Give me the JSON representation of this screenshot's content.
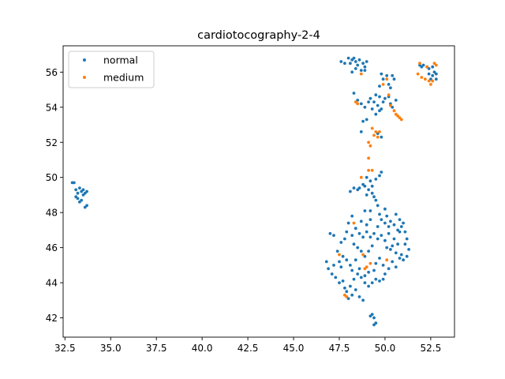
{
  "chart_data": {
    "type": "scatter",
    "title": "cardiotocography-2-4",
    "xlabel": "",
    "ylabel": "",
    "xlim": [
      32.4,
      53.8
    ],
    "ylim": [
      40.9,
      57.5
    ],
    "xticks": [
      32.5,
      35.0,
      37.5,
      40.0,
      42.5,
      45.0,
      47.5,
      50.0,
      52.5
    ],
    "xtick_labels": [
      "32.5",
      "35.0",
      "37.5",
      "40.0",
      "42.5",
      "45.0",
      "47.5",
      "50.0",
      "52.5"
    ],
    "yticks": [
      42,
      44,
      46,
      48,
      50,
      52,
      54,
      56
    ],
    "ytick_labels": [
      "42",
      "44",
      "46",
      "48",
      "50",
      "52",
      "54",
      "56"
    ],
    "grid": false,
    "legend": {
      "position": "top-left"
    },
    "series": [
      {
        "name": "normal",
        "color": "#1f77b4",
        "points": [
          [
            32.9,
            49.7
          ],
          [
            33.0,
            49.7
          ],
          [
            33.1,
            49.3
          ],
          [
            33.2,
            49.1
          ],
          [
            33.2,
            48.8
          ],
          [
            33.3,
            49.4
          ],
          [
            33.3,
            48.6
          ],
          [
            33.4,
            49.2
          ],
          [
            33.5,
            49.0
          ],
          [
            33.5,
            49.3
          ],
          [
            33.6,
            49.1
          ],
          [
            33.7,
            49.2
          ],
          [
            33.6,
            48.3
          ],
          [
            33.7,
            48.4
          ],
          [
            33.1,
            48.9
          ],
          [
            33.4,
            48.7
          ],
          [
            47.6,
            56.6
          ],
          [
            47.8,
            56.5
          ],
          [
            48.0,
            56.8
          ],
          [
            48.2,
            56.7
          ],
          [
            48.3,
            56.8
          ],
          [
            48.4,
            56.6
          ],
          [
            48.5,
            56.4
          ],
          [
            48.6,
            56.7
          ],
          [
            48.8,
            56.5
          ],
          [
            48.9,
            56.3
          ],
          [
            48.7,
            56.1
          ],
          [
            48.4,
            56.2
          ],
          [
            48.2,
            56.0
          ],
          [
            49.0,
            56.6
          ],
          [
            48.1,
            56.5
          ],
          [
            48.9,
            56.1
          ],
          [
            49.8,
            55.9
          ],
          [
            49.9,
            55.6
          ],
          [
            50.1,
            55.8
          ],
          [
            50.2,
            55.3
          ],
          [
            50.4,
            55.8
          ],
          [
            50.5,
            55.6
          ],
          [
            50.3,
            55.1
          ],
          [
            49.7,
            55.2
          ],
          [
            48.3,
            54.8
          ],
          [
            48.5,
            54.4
          ],
          [
            48.7,
            54.2
          ],
          [
            48.9,
            54.0
          ],
          [
            49.1,
            54.3
          ],
          [
            49.2,
            54.5
          ],
          [
            49.4,
            54.3
          ],
          [
            49.5,
            54.7
          ],
          [
            49.7,
            54.6
          ],
          [
            49.9,
            54.3
          ],
          [
            50.0,
            54.5
          ],
          [
            50.2,
            54.6
          ],
          [
            50.3,
            54.2
          ],
          [
            49.3,
            53.9
          ],
          [
            49.5,
            53.6
          ],
          [
            49.7,
            53.8
          ],
          [
            48.8,
            53.2
          ],
          [
            49.0,
            53.3
          ],
          [
            48.7,
            52.6
          ],
          [
            50.6,
            54.4
          ],
          [
            50.4,
            54.0
          ],
          [
            49.6,
            54.1
          ],
          [
            49.8,
            53.9
          ],
          [
            51.9,
            56.4
          ],
          [
            52.0,
            56.3
          ],
          [
            52.1,
            56.4
          ],
          [
            52.3,
            56.3
          ],
          [
            52.4,
            56.2
          ],
          [
            52.6,
            56.3
          ],
          [
            52.7,
            56.0
          ],
          [
            52.8,
            55.6
          ],
          [
            52.6,
            55.8
          ],
          [
            52.4,
            55.9
          ],
          [
            52.5,
            55.6
          ],
          [
            52.8,
            55.9
          ],
          [
            49.6,
            52.5
          ],
          [
            49.8,
            52.3
          ],
          [
            49.0,
            50.0
          ],
          [
            49.2,
            49.8
          ],
          [
            49.3,
            49.5
          ],
          [
            49.5,
            49.9
          ],
          [
            49.7,
            50.1
          ],
          [
            49.8,
            50.3
          ],
          [
            48.8,
            49.6
          ],
          [
            48.6,
            49.4
          ],
          [
            48.5,
            49.3
          ],
          [
            48.3,
            49.4
          ],
          [
            48.1,
            49.2
          ],
          [
            48.9,
            49.5
          ],
          [
            49.1,
            49.3
          ],
          [
            49.3,
            49.1
          ],
          [
            49.4,
            48.9
          ],
          [
            49.5,
            48.7
          ],
          [
            49.0,
            49.0
          ],
          [
            48.9,
            48.1
          ],
          [
            49.2,
            48.1
          ],
          [
            49.6,
            48.4
          ],
          [
            50.0,
            48.2
          ],
          [
            50.1,
            47.8
          ],
          [
            50.3,
            47.5
          ],
          [
            50.5,
            47.3
          ],
          [
            50.6,
            47.9
          ],
          [
            50.8,
            47.6
          ],
          [
            50.9,
            47.2
          ],
          [
            51.0,
            47.4
          ],
          [
            51.1,
            46.9
          ],
          [
            51.2,
            46.5
          ],
          [
            51.3,
            45.9
          ],
          [
            51.2,
            45.5
          ],
          [
            51.0,
            45.3
          ],
          [
            50.8,
            45.4
          ],
          [
            50.6,
            45.7
          ],
          [
            50.4,
            45.2
          ],
          [
            50.2,
            44.8
          ],
          [
            50.0,
            44.5
          ],
          [
            49.9,
            44.2
          ],
          [
            49.7,
            44.1
          ],
          [
            49.5,
            44.2
          ],
          [
            49.3,
            44.0
          ],
          [
            49.1,
            43.8
          ],
          [
            48.9,
            44.0
          ],
          [
            48.7,
            44.3
          ],
          [
            48.5,
            44.5
          ],
          [
            48.3,
            44.2
          ],
          [
            48.1,
            43.8
          ],
          [
            47.9,
            43.5
          ],
          [
            47.8,
            43.7
          ],
          [
            48.0,
            43.1
          ],
          [
            48.2,
            43.3
          ],
          [
            48.4,
            43.6
          ],
          [
            48.6,
            43.2
          ],
          [
            48.8,
            43.0
          ],
          [
            49.3,
            42.2
          ],
          [
            49.4,
            42.0
          ],
          [
            49.5,
            41.7
          ],
          [
            49.4,
            41.6
          ],
          [
            49.2,
            42.1
          ],
          [
            46.8,
            45.2
          ],
          [
            46.9,
            44.8
          ],
          [
            47.1,
            44.5
          ],
          [
            47.3,
            44.3
          ],
          [
            47.2,
            45.0
          ],
          [
            47.5,
            45.2
          ],
          [
            47.7,
            45.5
          ],
          [
            47.9,
            45.3
          ],
          [
            48.1,
            45.0
          ],
          [
            47.4,
            45.8
          ],
          [
            47.6,
            44.9
          ],
          [
            47.0,
            46.8
          ],
          [
            47.2,
            46.7
          ],
          [
            47.8,
            46.5
          ],
          [
            47.9,
            46.9
          ],
          [
            48.2,
            46.7
          ],
          [
            48.4,
            47.1
          ],
          [
            48.6,
            46.8
          ],
          [
            48.8,
            46.6
          ],
          [
            49.0,
            46.9
          ],
          [
            49.2,
            46.6
          ],
          [
            49.4,
            46.8
          ],
          [
            49.6,
            46.5
          ],
          [
            49.8,
            46.7
          ],
          [
            50.0,
            46.4
          ],
          [
            50.2,
            46.8
          ],
          [
            50.4,
            46.1
          ],
          [
            50.5,
            46.5
          ],
          [
            50.7,
            46.2
          ],
          [
            50.8,
            46.9
          ],
          [
            48.3,
            46.2
          ],
          [
            48.5,
            46.0
          ],
          [
            48.7,
            45.8
          ],
          [
            48.9,
            45.5
          ],
          [
            49.1,
            45.8
          ],
          [
            49.3,
            46.1
          ],
          [
            48.7,
            47.5
          ],
          [
            49.0,
            47.3
          ],
          [
            49.2,
            47.6
          ],
          [
            49.6,
            47.2
          ],
          [
            49.8,
            47.6
          ],
          [
            50.0,
            47.4
          ],
          [
            48.0,
            47.4
          ],
          [
            48.2,
            47.8
          ],
          [
            47.6,
            46.3
          ],
          [
            49.5,
            45.1
          ],
          [
            49.7,
            45.4
          ],
          [
            49.9,
            45.0
          ],
          [
            48.4,
            45.3
          ],
          [
            48.6,
            44.8
          ],
          [
            47.7,
            44.1
          ],
          [
            48.2,
            44.7
          ],
          [
            50.3,
            45.9
          ],
          [
            50.6,
            44.9
          ],
          [
            50.1,
            46.0
          ],
          [
            49.4,
            44.7
          ],
          [
            48.9,
            44.4
          ],
          [
            49.1,
            44.6
          ],
          [
            47.5,
            44.0
          ],
          [
            50.9,
            45.6
          ],
          [
            51.1,
            46.2
          ],
          [
            50.7,
            47.0
          ],
          [
            49.7,
            47.9
          ],
          [
            50.2,
            47.2
          ]
        ]
      },
      {
        "name": "medium",
        "color": "#ff7f0e",
        "points": [
          [
            48.4,
            54.3
          ],
          [
            48.5,
            54.2
          ],
          [
            48.7,
            55.9
          ],
          [
            49.9,
            55.3
          ],
          [
            50.1,
            55.6
          ],
          [
            50.2,
            54.7
          ],
          [
            50.3,
            54.1
          ],
          [
            50.5,
            53.8
          ],
          [
            50.6,
            53.6
          ],
          [
            50.8,
            53.4
          ],
          [
            50.9,
            53.3
          ],
          [
            50.7,
            53.5
          ],
          [
            49.3,
            52.8
          ],
          [
            49.5,
            52.6
          ],
          [
            49.6,
            52.3
          ],
          [
            49.4,
            52.4
          ],
          [
            49.1,
            52.0
          ],
          [
            49.2,
            51.8
          ],
          [
            49.7,
            52.6
          ],
          [
            49.1,
            51.1
          ],
          [
            49.1,
            50.4
          ],
          [
            49.3,
            50.4
          ],
          [
            48.7,
            50.0
          ],
          [
            51.8,
            55.9
          ],
          [
            51.9,
            56.5
          ],
          [
            52.2,
            55.6
          ],
          [
            52.4,
            55.5
          ],
          [
            52.5,
            55.3
          ],
          [
            52.6,
            55.5
          ],
          [
            52.7,
            56.5
          ],
          [
            52.8,
            56.4
          ],
          [
            52.3,
            56.3
          ],
          [
            52.0,
            55.7
          ],
          [
            47.8,
            43.3
          ],
          [
            47.9,
            43.2
          ],
          [
            48.8,
            45.6
          ],
          [
            49.0,
            44.9
          ],
          [
            49.2,
            45.1
          ],
          [
            48.9,
            44.8
          ],
          [
            50.1,
            45.3
          ],
          [
            48.3,
            47.4
          ],
          [
            47.5,
            45.6
          ]
        ]
      }
    ]
  }
}
